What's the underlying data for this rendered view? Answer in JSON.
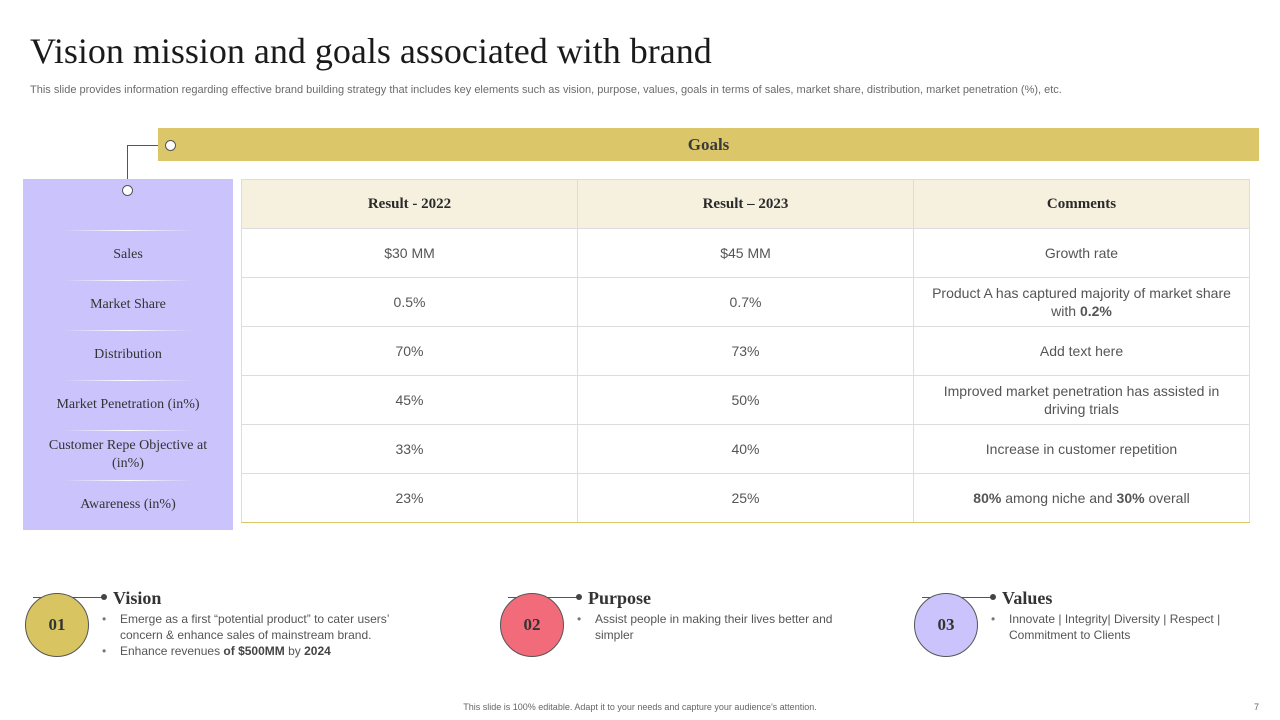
{
  "title": "Vision mission and goals associated with brand",
  "subtitle": "This slide provides information regarding effective brand building strategy that includes key elements such as vision, purpose, values, goals in terms of sales, market share, distribution, market penetration (%), etc.",
  "goals_header": "Goals",
  "table": {
    "headers": [
      "Result - 2022",
      "Result – 2023",
      "Comments"
    ],
    "rows": [
      {
        "label": "Sales",
        "r2022": "$30 MM",
        "r2023": "$45 MM",
        "comment": "Growth rate"
      },
      {
        "label": "Market Share",
        "r2022": "0.5%",
        "r2023": "0.7%",
        "comment_pre": "Product A has captured majority of market share with ",
        "comment_bold": "0.2%"
      },
      {
        "label": "Distribution",
        "r2022": "70%",
        "r2023": "73%",
        "comment": "Add text here"
      },
      {
        "label": "Market Penetration (in%)",
        "r2022": "45%",
        "r2023": "50%",
        "comment": "Improved market penetration has assisted in driving trials"
      },
      {
        "label": "Customer Repe Objective at (in%)",
        "r2022": "33%",
        "r2023": "40%",
        "comment": "Increase in customer repetition"
      },
      {
        "label": "Awareness (in%)",
        "r2022": "23%",
        "r2023": "25%",
        "comment_b1": "80%",
        "comment_t1": " among niche and ",
        "comment_b2": "30%",
        "comment_t2": " overall"
      }
    ]
  },
  "sections": {
    "vision": {
      "number": "01",
      "title": "Vision",
      "color": "#d8c562",
      "bullet1": "Emerge as a first “potential product” to cater users’ concern & enhance sales of mainstream brand.",
      "bullet2_pre": "Enhance revenues ",
      "bullet2_bold1": "of $500MM",
      "bullet2_mid": " by ",
      "bullet2_bold2": "2024"
    },
    "purpose": {
      "number": "02",
      "title": "Purpose",
      "color": "#f26b7a",
      "bullet1": "Assist people in making their lives better and simpler"
    },
    "values": {
      "number": "03",
      "title": "Values",
      "color": "#cbc4fc",
      "bullet1": "Innovate | Integrity| Diversity | Respect | Commitment to Clients"
    }
  },
  "footer": "This slide is 100% editable. Adapt it to your needs and capture your audience's attention.",
  "page_number": "7"
}
